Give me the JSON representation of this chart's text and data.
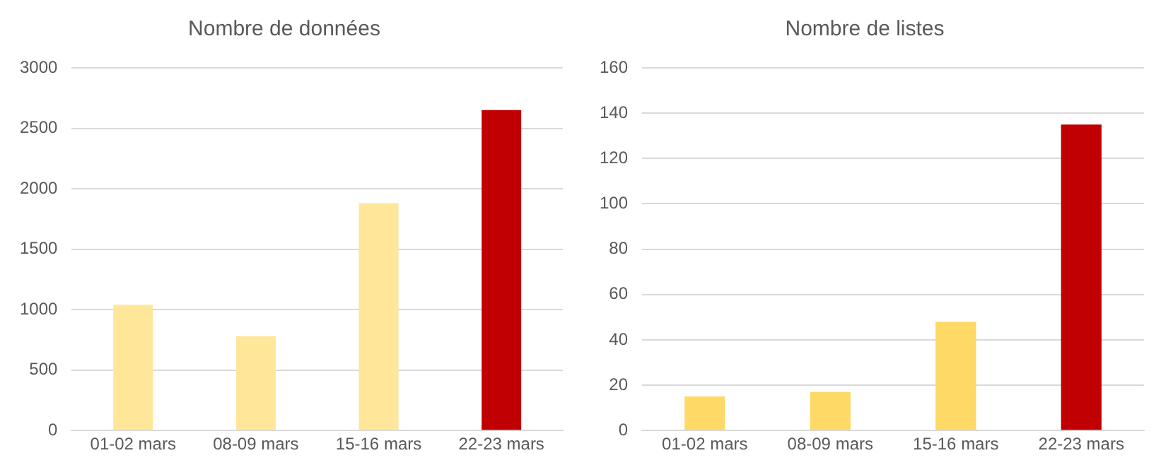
{
  "chart_data": [
    {
      "type": "bar",
      "title": "Nombre de données",
      "categories": [
        "01-02 mars",
        "08-09 mars",
        "15-16 mars",
        "22-23 mars"
      ],
      "values": [
        1040,
        780,
        1880,
        2650
      ],
      "colors": [
        "#ffe699",
        "#ffe699",
        "#ffe699",
        "#c00000"
      ],
      "ylim": [
        0,
        3000
      ],
      "yticks": [
        0,
        500,
        1000,
        1500,
        2000,
        2500,
        3000
      ],
      "grid": "y",
      "legend": false
    },
    {
      "type": "bar",
      "title": "Nombre de listes",
      "categories": [
        "01-02 mars",
        "08-09 mars",
        "15-16 mars",
        "22-23 mars"
      ],
      "values": [
        15,
        17,
        48,
        135
      ],
      "colors": [
        "#ffd966",
        "#ffd966",
        "#ffd966",
        "#c00000"
      ],
      "ylim": [
        0,
        160
      ],
      "yticks": [
        0,
        20,
        40,
        60,
        80,
        100,
        120,
        140,
        160
      ],
      "grid": "y",
      "legend": false
    }
  ]
}
